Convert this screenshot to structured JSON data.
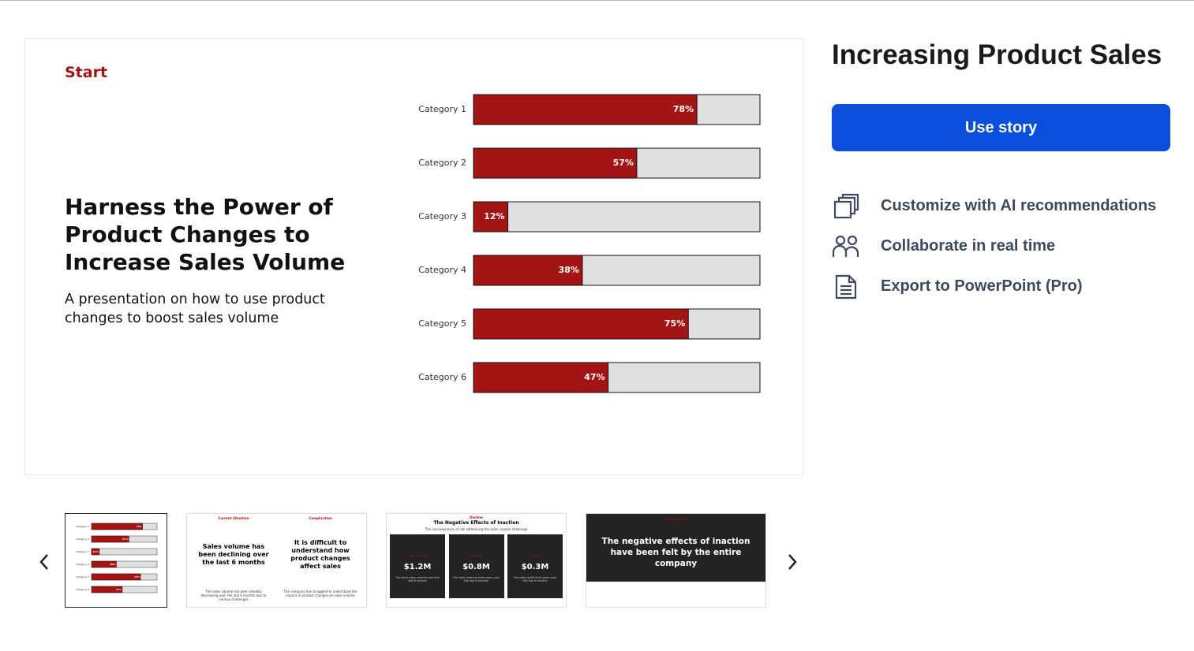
{
  "slide": {
    "label": "Start",
    "title": "Harness the Power of Product Changes to Increase Sales Volume",
    "subtitle": "A presentation on how to use product changes to boost sales volume"
  },
  "chart_data": {
    "type": "bar",
    "orientation": "horizontal",
    "categories": [
      "Category 1",
      "Category 2",
      "Category 3",
      "Category 4",
      "Category 5",
      "Category 6"
    ],
    "values": [
      78,
      57,
      12,
      38,
      75,
      47
    ],
    "value_labels": [
      "78%",
      "57%",
      "12%",
      "38%",
      "75%",
      "47%"
    ],
    "xlim": [
      0,
      100
    ],
    "color": "#a31515",
    "track_color": "#e0e0e0"
  },
  "sidebar": {
    "title": "Increasing Product Sales",
    "button": "Use story",
    "features": [
      "Customize with AI recommendations",
      "Collaborate in real time",
      "Export to PowerPoint (Pro)"
    ]
  },
  "thumbnails": {
    "slide2": {
      "left_heading": "Current Situation",
      "right_heading": "Complication",
      "left_title": "Sales volume has been declining over the last 6 months",
      "right_title": "It is difficult to understand how product changes affect sales",
      "left_text": "The sales volume has been steadily decreasing over the last 6 months due to various challenges",
      "right_text": "The company has struggled to understand the impact of product changes on sales volume"
    },
    "slide3": {
      "heading": "Decline",
      "title": "The Negative Effects of Inaction",
      "subtitle": "The consequences of not addressing the sales volume challenge",
      "boxes": [
        {
          "label": "Sales Volume",
          "value": "$1.2M",
          "text": "The total sales volume over the last 6 months"
        },
        {
          "label": "Revenue",
          "value": "$0.8M",
          "text": "The total revenue from sales over the last 6 months"
        },
        {
          "label": "Profit",
          "value": "$0.3M",
          "text": "The total profit from sales over the last 6 months"
        }
      ]
    },
    "slide4": {
      "heading": "Consequence",
      "title": "The negative effects of inaction have been felt by the entire company"
    }
  }
}
